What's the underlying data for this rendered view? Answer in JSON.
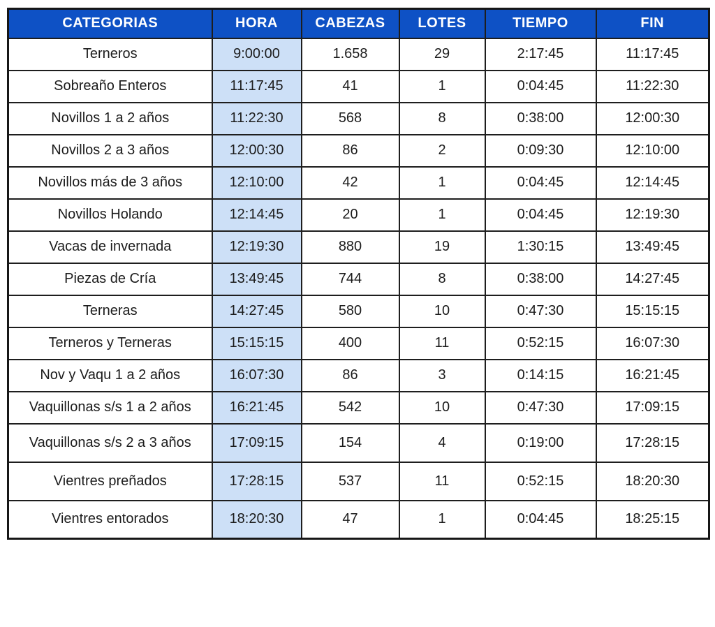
{
  "colors": {
    "header_bg": "#0e51c5",
    "header_text": "#ffffff",
    "hora_column_bg": "#cde0f7",
    "border": "#1e1e1e",
    "body_text": "#1c1c1c"
  },
  "table": {
    "headers": {
      "categorias": "CATEGORIAS",
      "hora": "HORA",
      "cabezas": "CABEZAS",
      "lotes": "LOTES",
      "tiempo": "TIEMPO",
      "fin": "FIN"
    },
    "rows": [
      {
        "categoria": "Terneros",
        "hora": "9:00:00",
        "cabezas": "1.658",
        "lotes": "29",
        "tiempo": "2:17:45",
        "fin": "11:17:45"
      },
      {
        "categoria": "Sobreaño Enteros",
        "hora": "11:17:45",
        "cabezas": "41",
        "lotes": "1",
        "tiempo": "0:04:45",
        "fin": "11:22:30"
      },
      {
        "categoria": "Novillos 1 a 2 años",
        "hora": "11:22:30",
        "cabezas": "568",
        "lotes": "8",
        "tiempo": "0:38:00",
        "fin": "12:00:30"
      },
      {
        "categoria": "Novillos 2 a 3 años",
        "hora": "12:00:30",
        "cabezas": "86",
        "lotes": "2",
        "tiempo": "0:09:30",
        "fin": "12:10:00"
      },
      {
        "categoria": "Novillos más de 3 años",
        "hora": "12:10:00",
        "cabezas": "42",
        "lotes": "1",
        "tiempo": "0:04:45",
        "fin": "12:14:45"
      },
      {
        "categoria": "Novillos Holando",
        "hora": "12:14:45",
        "cabezas": "20",
        "lotes": "1",
        "tiempo": "0:04:45",
        "fin": "12:19:30"
      },
      {
        "categoria": "Vacas de invernada",
        "hora": "12:19:30",
        "cabezas": "880",
        "lotes": "19",
        "tiempo": "1:30:15",
        "fin": "13:49:45"
      },
      {
        "categoria": "Piezas de Cría",
        "hora": "13:49:45",
        "cabezas": "744",
        "lotes": "8",
        "tiempo": "0:38:00",
        "fin": "14:27:45"
      },
      {
        "categoria": "Terneras",
        "hora": "14:27:45",
        "cabezas": "580",
        "lotes": "10",
        "tiempo": "0:47:30",
        "fin": "15:15:15"
      },
      {
        "categoria": "Terneros y Terneras",
        "hora": "15:15:15",
        "cabezas": "400",
        "lotes": "11",
        "tiempo": "0:52:15",
        "fin": "16:07:30"
      },
      {
        "categoria": "Nov y Vaqu 1 a 2 años",
        "hora": "16:07:30",
        "cabezas": "86",
        "lotes": "3",
        "tiempo": "0:14:15",
        "fin": "16:21:45"
      },
      {
        "categoria": "Vaquillonas s/s 1 a 2 años",
        "hora": "16:21:45",
        "cabezas": "542",
        "lotes": "10",
        "tiempo": "0:47:30",
        "fin": "17:09:15"
      },
      {
        "categoria": "Vaquillonas s/s 2 a 3 años",
        "hora": "17:09:15",
        "cabezas": "154",
        "lotes": "4",
        "tiempo": "0:19:00",
        "fin": "17:28:15"
      },
      {
        "categoria": "Vientres preñados",
        "hora": "17:28:15",
        "cabezas": "537",
        "lotes": "11",
        "tiempo": "0:52:15",
        "fin": "18:20:30"
      },
      {
        "categoria": "Vientres entorados",
        "hora": "18:20:30",
        "cabezas": "47",
        "lotes": "1",
        "tiempo": "0:04:45",
        "fin": "18:25:15"
      }
    ]
  }
}
